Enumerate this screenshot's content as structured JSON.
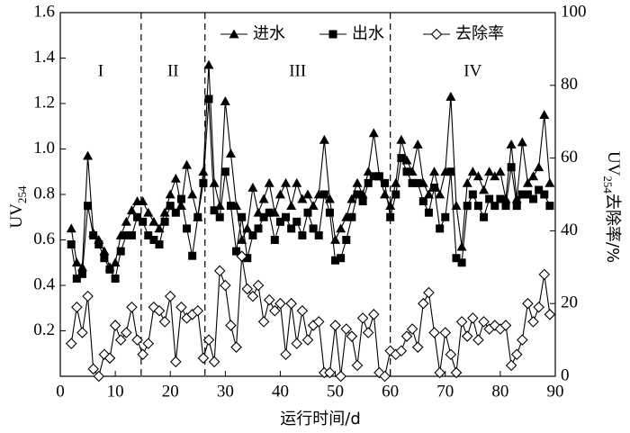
{
  "chart_data": {
    "type": "line",
    "xlabel": "运行时间/d",
    "ylabel": {
      "text": "UV",
      "sub": "254"
    },
    "y2label": {
      "text": "UV",
      "sub": "254",
      "rest": "去除率/%"
    },
    "x": [
      2,
      3,
      4,
      5,
      6,
      7,
      8,
      9,
      10,
      11,
      12,
      13,
      14,
      15,
      16,
      17,
      18,
      19,
      20,
      21,
      22,
      23,
      24,
      25,
      26,
      27,
      28,
      29,
      30,
      31,
      32,
      33,
      34,
      35,
      36,
      37,
      38,
      39,
      40,
      41,
      42,
      43,
      44,
      45,
      46,
      47,
      48,
      49,
      50,
      51,
      52,
      53,
      54,
      55,
      56,
      57,
      58,
      59,
      60,
      61,
      62,
      63,
      64,
      65,
      66,
      67,
      68,
      69,
      70,
      71,
      72,
      73,
      74,
      75,
      76,
      77,
      78,
      79,
      80,
      81,
      82,
      83,
      84,
      85,
      86,
      87,
      88,
      89
    ],
    "series": [
      {
        "name": "进水",
        "color": "#000000",
        "marker": "triangle",
        "axis": "y",
        "values": [
          0.65,
          0.5,
          0.48,
          0.97,
          0.63,
          0.6,
          0.55,
          0.48,
          0.5,
          0.62,
          0.68,
          0.73,
          0.77,
          0.77,
          0.72,
          0.68,
          0.65,
          0.72,
          0.8,
          0.87,
          0.75,
          0.93,
          0.8,
          0.7,
          0.9,
          1.37,
          0.85,
          0.75,
          1.21,
          0.98,
          0.75,
          0.6,
          0.65,
          0.83,
          0.72,
          0.78,
          0.85,
          0.72,
          0.8,
          0.85,
          0.75,
          0.85,
          0.78,
          0.8,
          0.75,
          0.8,
          1.04,
          0.78,
          0.6,
          0.65,
          0.7,
          0.78,
          0.85,
          0.8,
          0.9,
          1.07,
          0.88,
          0.8,
          0.75,
          0.85,
          1.04,
          0.95,
          0.9,
          1.02,
          0.85,
          0.8,
          0.9,
          0.8,
          0.9,
          1.23,
          0.75,
          0.57,
          0.85,
          0.9,
          0.88,
          0.82,
          0.9,
          0.88,
          0.9,
          0.78,
          1.02,
          0.78,
          1.03,
          0.85,
          0.88,
          0.92,
          1.15,
          0.85
        ]
      },
      {
        "name": "出水",
        "color": "#000000",
        "marker": "square",
        "axis": "y",
        "values": [
          0.58,
          0.43,
          0.45,
          0.75,
          0.62,
          0.58,
          0.52,
          0.47,
          0.43,
          0.55,
          0.62,
          0.62,
          0.7,
          0.68,
          0.62,
          0.6,
          0.58,
          0.68,
          0.75,
          0.72,
          0.78,
          0.65,
          0.53,
          0.7,
          0.85,
          1.22,
          0.73,
          0.7,
          0.9,
          0.75,
          0.55,
          0.7,
          0.52,
          0.62,
          0.65,
          0.7,
          0.72,
          0.6,
          0.68,
          0.7,
          0.65,
          0.68,
          0.62,
          0.72,
          0.65,
          0.62,
          0.8,
          0.72,
          0.51,
          0.52,
          0.6,
          0.7,
          0.8,
          0.77,
          0.85,
          0.88,
          0.88,
          0.85,
          0.7,
          0.8,
          0.96,
          0.9,
          0.85,
          0.85,
          0.77,
          0.72,
          0.83,
          0.65,
          0.7,
          0.9,
          0.52,
          0.5,
          0.75,
          0.8,
          0.75,
          0.7,
          0.78,
          0.75,
          0.78,
          0.75,
          0.92,
          0.75,
          0.8,
          0.8,
          0.78,
          0.82,
          0.8,
          0.75
        ]
      },
      {
        "name": "去除率",
        "color": "#000000",
        "marker": "diamond",
        "axis": "y2",
        "values": [
          9,
          19,
          12,
          22,
          2,
          0,
          6,
          5,
          14,
          10,
          12,
          19,
          10,
          6,
          9,
          19,
          18,
          15,
          22,
          4,
          19,
          16,
          17,
          18,
          5,
          10,
          4,
          29,
          25,
          14,
          8,
          33,
          24,
          22,
          25,
          15,
          21,
          18,
          20,
          6,
          20,
          9,
          18,
          10,
          14,
          15,
          1,
          1,
          14,
          0,
          13,
          11,
          3,
          16,
          12,
          17,
          1,
          0,
          7,
          6,
          7,
          11,
          13,
          8,
          20,
          23,
          12,
          1,
          12,
          6,
          1,
          15,
          11,
          16,
          10,
          15,
          13,
          14,
          13,
          14,
          3,
          6,
          10,
          20,
          15,
          19,
          28,
          17
        ]
      }
    ],
    "phases": {
      "labels": [
        "I",
        "II",
        "III",
        "IV"
      ],
      "dividers": [
        14.7,
        26.3,
        60
      ]
    },
    "xlim": [
      0,
      90
    ],
    "xticks": [
      0,
      10,
      20,
      30,
      40,
      50,
      60,
      70,
      80,
      90
    ],
    "ylim": [
      0,
      1.6
    ],
    "yticks": [
      0.2,
      0.4,
      0.6,
      0.8,
      {
        "value": 1,
        "label": "1.0"
      },
      1.2,
      1.4,
      1.6
    ],
    "y2lim": [
      0,
      100
    ],
    "y2ticks": [
      0,
      20,
      40,
      60,
      80,
      100
    ],
    "legend": "top"
  }
}
